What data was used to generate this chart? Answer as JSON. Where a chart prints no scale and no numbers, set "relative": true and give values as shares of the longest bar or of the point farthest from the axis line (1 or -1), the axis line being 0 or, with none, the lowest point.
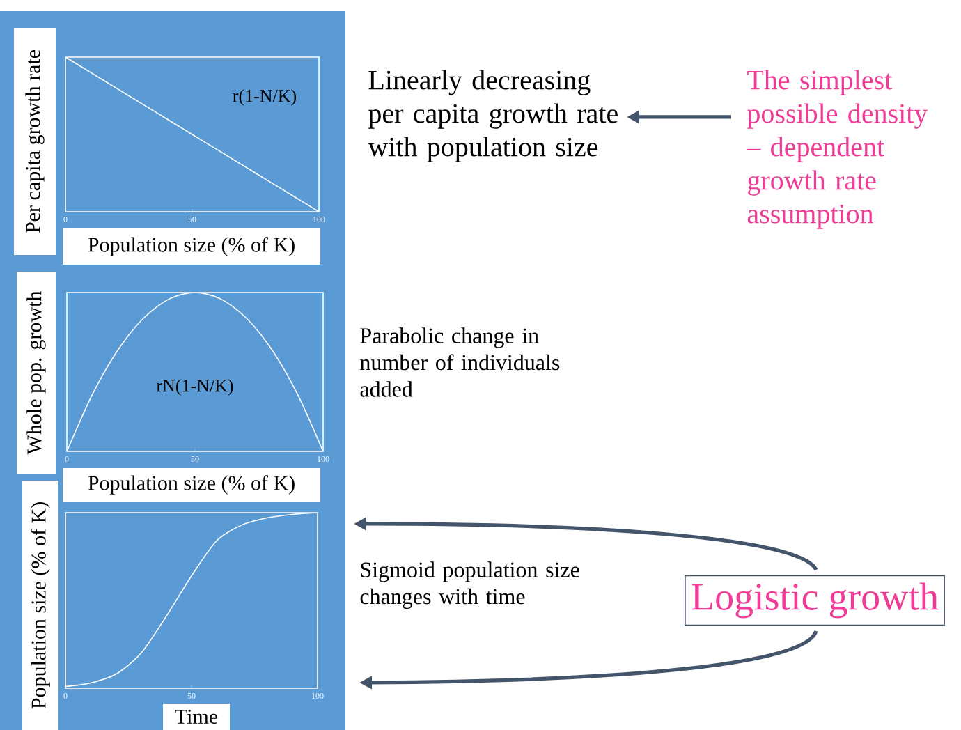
{
  "chart_data": [
    {
      "type": "line",
      "relative": true,
      "xlabel": "Population size (% of K)",
      "ylabel": "Per capita growth rate",
      "xlim": [
        0,
        100
      ],
      "xticks": [
        0,
        50,
        100
      ],
      "x": [
        0,
        10,
        20,
        30,
        40,
        50,
        60,
        70,
        80,
        90,
        100
      ],
      "series": [
        {
          "color": "#ffffff",
          "values": [
            1,
            0.9,
            0.8,
            0.7,
            0.6,
            0.5,
            0.4,
            0.3,
            0.2,
            0.1,
            0
          ]
        }
      ],
      "annotations": [
        "r(1-N/K)",
        "Linearly decreasing per capita growth rate with population size",
        "The simplest possible density – dependent growth rate assumption"
      ]
    },
    {
      "type": "line",
      "relative": true,
      "xlabel": "Population size (% of K)",
      "ylabel": "Whole pop. growth",
      "xlim": [
        0,
        100
      ],
      "xticks": [
        0,
        50,
        100
      ],
      "x": [
        0,
        10,
        20,
        30,
        40,
        50,
        60,
        70,
        80,
        90,
        100
      ],
      "series": [
        {
          "color": "#ffffff",
          "values": [
            0,
            0.36,
            0.64,
            0.84,
            0.96,
            1,
            0.96,
            0.84,
            0.64,
            0.36,
            0
          ]
        }
      ],
      "annotations": [
        "rN(1-N/K)",
        "Parabolic change in number of individuals added"
      ]
    },
    {
      "type": "line",
      "relative": true,
      "xlabel": "Time",
      "ylabel": "Population size (% of K)",
      "xlim": [
        0,
        100
      ],
      "xticks": [
        0,
        50,
        100
      ],
      "x": [
        0,
        10,
        20,
        30,
        40,
        50,
        60,
        70,
        80,
        90,
        100
      ],
      "series": [
        {
          "color": "#ffffff",
          "values": [
            0.01,
            0.03,
            0.08,
            0.2,
            0.41,
            0.64,
            0.84,
            0.93,
            0.97,
            0.99,
            1
          ]
        }
      ],
      "annotations": [
        "Sigmoid population size changes with time",
        "Logistic growth"
      ]
    }
  ]
}
